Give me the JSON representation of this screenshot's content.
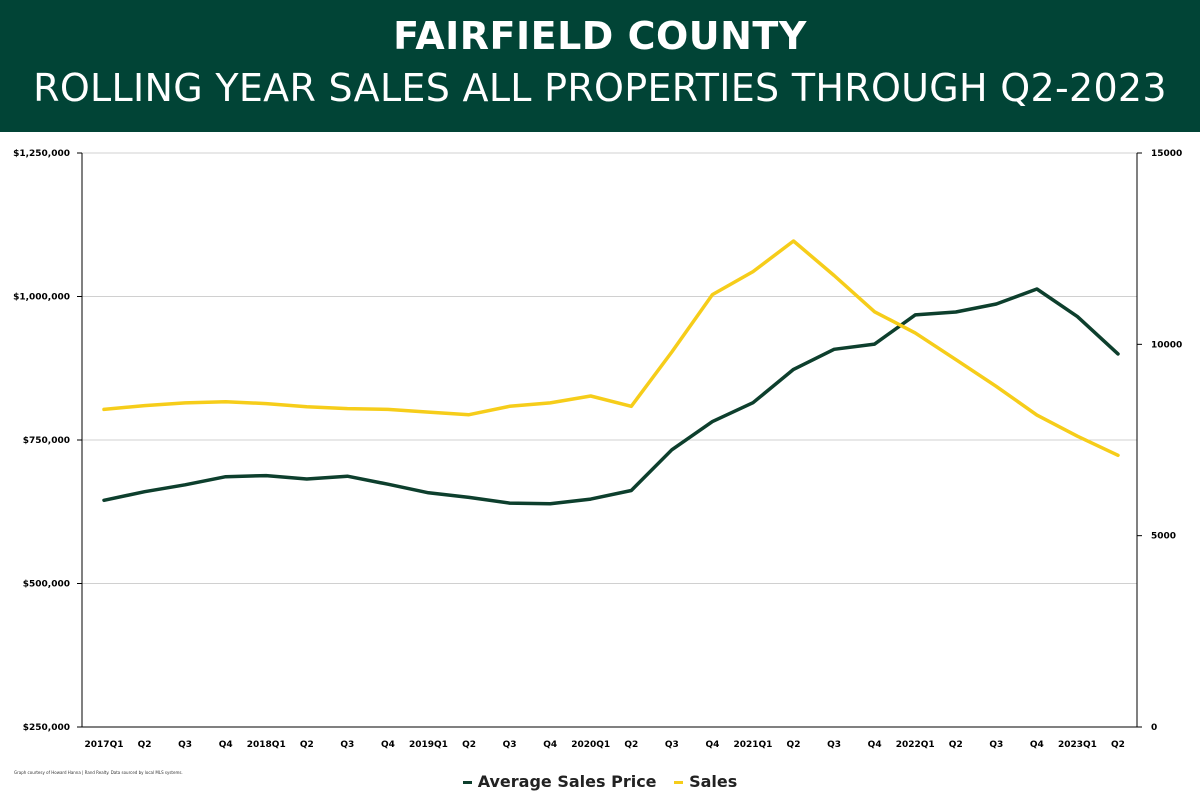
{
  "header": {
    "title": "FAIRFIELD COUNTY",
    "subtitle": "ROLLING YEAR SALES ALL PROPERTIES THROUGH Q2-2023"
  },
  "footnote": "Graph courtesy of Howard Hanna | Rand Realty. Data sourced by local MLS systems.",
  "colors": {
    "banner": "#014436",
    "price_series": "#0d3f2d",
    "sales_series": "#f6cd1a",
    "grid": "#d0d0d0"
  },
  "chart_data": {
    "type": "line",
    "title": "ROLLING YEAR SALES ALL PROPERTIES THROUGH Q2-2023",
    "categories": [
      "2017Q1",
      "Q2",
      "Q3",
      "Q4",
      "2018Q1",
      "Q2",
      "Q3",
      "Q4",
      "2019Q1",
      "Q2",
      "Q3",
      "Q4",
      "2020Q1",
      "Q2",
      "Q3",
      "Q4",
      "2021Q1",
      "Q2",
      "Q3",
      "Q4",
      "2022Q1",
      "Q2",
      "Q3",
      "Q4",
      "2023Q1",
      "Q2"
    ],
    "y_left": {
      "range": [
        250000,
        1250000
      ],
      "ticks": [
        250000,
        500000,
        750000,
        1000000,
        1250000
      ],
      "tick_labels": [
        "$250,000",
        "$500,000",
        "$750,000",
        "$1,000,000",
        "$1,250,000"
      ]
    },
    "y_right": {
      "range": [
        0,
        15000
      ],
      "ticks": [
        0,
        5000,
        10000,
        15000
      ],
      "tick_labels": [
        "0",
        "5000",
        "10000",
        "15000"
      ]
    },
    "grid": true,
    "legend_position": "bottom-center",
    "series": [
      {
        "name": "Average Sales Price",
        "axis": "left",
        "color": "#0d3f2d",
        "values": [
          645000,
          660000,
          672000,
          686000,
          688000,
          682000,
          687000,
          673000,
          658000,
          650000,
          640000,
          639000,
          647000,
          662000,
          733000,
          782000,
          815000,
          873000,
          908000,
          917000,
          968000,
          973000,
          987000,
          1013000,
          965000,
          900000
        ]
      },
      {
        "name": "Sales",
        "axis": "right",
        "color": "#f6cd1a",
        "values": [
          8300,
          8400,
          8470,
          8500,
          8450,
          8370,
          8320,
          8300,
          8230,
          8160,
          8380,
          8470,
          8650,
          8380,
          9800,
          11300,
          11900,
          12700,
          11800,
          10850,
          10300,
          9600,
          8900,
          8150,
          7600,
          7100
        ]
      }
    ]
  }
}
